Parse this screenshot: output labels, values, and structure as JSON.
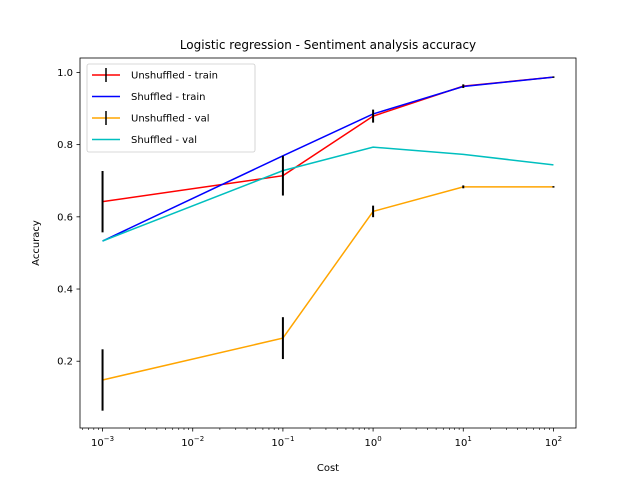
{
  "chart_data": {
    "type": "line",
    "title": "Logistic regression - Sentiment analysis accuracy",
    "xlabel": "Cost",
    "ylabel": "Accuracy",
    "x_scale": "log",
    "x": [
      0.001,
      0.1,
      1,
      10,
      100
    ],
    "x_tick_values": [
      0.001,
      0.01,
      0.1,
      1,
      10,
      100
    ],
    "x_tick_labels": [
      {
        "base": "10",
        "exp": "−3"
      },
      {
        "base": "10",
        "exp": "−2"
      },
      {
        "base": "10",
        "exp": "−1"
      },
      {
        "base": "10",
        "exp": "0"
      },
      {
        "base": "10",
        "exp": "1"
      },
      {
        "base": "10",
        "exp": "2"
      }
    ],
    "y_ticks": [
      0.2,
      0.4,
      0.6,
      0.8,
      1.0
    ],
    "y_tick_labels": [
      "0.2",
      "0.4",
      "0.6",
      "0.8",
      "1.0"
    ],
    "ylim": [
      0.015,
      1.04
    ],
    "xlim_log10": [
      -3.25,
      2.25
    ],
    "grid": false,
    "legend_position": "upper-left",
    "series": [
      {
        "name": "Unshuffled - train",
        "color": "#ff0000",
        "values": [
          0.642,
          0.714,
          0.879,
          0.962,
          0.987
        ],
        "errors": [
          0.085,
          0.055,
          0.018,
          0.005,
          0.002
        ]
      },
      {
        "name": "Shuffled - train",
        "color": "#0000ff",
        "values": [
          0.533,
          0.769,
          0.885,
          0.961,
          0.987
        ],
        "errors": []
      },
      {
        "name": "Unshuffled - val",
        "color": "#ffa500",
        "values": [
          0.148,
          0.264,
          0.615,
          0.683,
          0.683
        ],
        "errors": [
          0.085,
          0.058,
          0.016,
          0.004,
          0.002
        ]
      },
      {
        "name": "Shuffled - val",
        "color": "#00bfbf",
        "values": [
          0.533,
          0.728,
          0.793,
          0.773,
          0.744
        ],
        "errors": []
      }
    ]
  }
}
